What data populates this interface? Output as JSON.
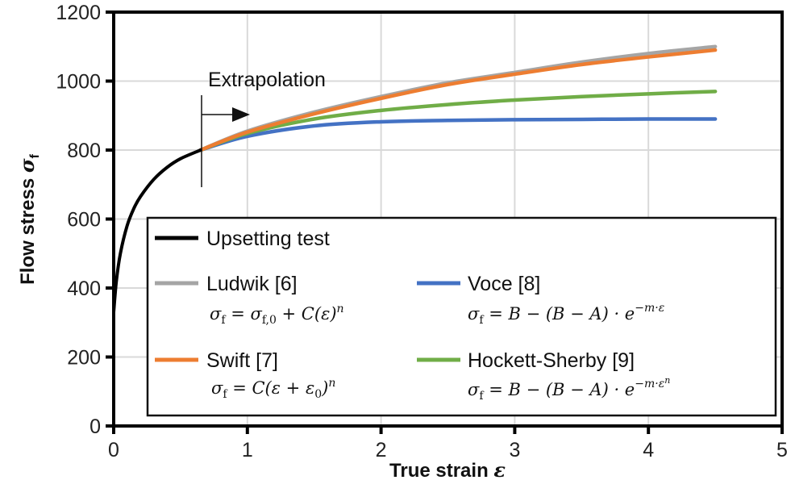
{
  "chart_data": {
    "type": "line",
    "title": "",
    "xlabel": "True strain ε",
    "ylabel": "Flow stress σf",
    "xlim": [
      0,
      5
    ],
    "ylim": [
      0,
      1200
    ],
    "xticks": [
      "0",
      "1",
      "2",
      "3",
      "4",
      "5"
    ],
    "yticks": [
      "0",
      "200",
      "400",
      "600",
      "800",
      "1000",
      "1200"
    ],
    "grid": true,
    "legend_position": "inside lower center",
    "annotations": [
      {
        "text": "Extrapolation",
        "x": 0.65,
        "arrow": "right",
        "marker_x": 0.65
      }
    ],
    "series": [
      {
        "name": "Upsetting test",
        "color": "#000000",
        "x": [
          0,
          0.02,
          0.05,
          0.1,
          0.15,
          0.2,
          0.3,
          0.4,
          0.5,
          0.65
        ],
        "y": [
          330,
          420,
          500,
          580,
          630,
          665,
          715,
          750,
          775,
          800
        ]
      },
      {
        "name": "Ludwik [6]",
        "equation": "σf = σf,0 + C(ε)^n",
        "color": "#a5a5a5",
        "x": [
          0.65,
          1,
          1.5,
          2,
          2.5,
          3,
          3.5,
          4,
          4.5
        ],
        "y": [
          800,
          855,
          910,
          955,
          995,
          1025,
          1055,
          1080,
          1100
        ]
      },
      {
        "name": "Swift [7]",
        "equation": "σf = C(ε + ε0)^n",
        "color": "#ed7d31",
        "x": [
          0.65,
          1,
          1.5,
          2,
          2.5,
          3,
          3.5,
          4,
          4.5
        ],
        "y": [
          800,
          852,
          905,
          950,
          990,
          1020,
          1048,
          1070,
          1090
        ]
      },
      {
        "name": "Voce [8]",
        "equation": "σf = B − (B − A) · e^(−m·ε)",
        "color": "#4472c4",
        "x": [
          0.65,
          1,
          1.5,
          2,
          2.5,
          3,
          3.5,
          4,
          4.5
        ],
        "y": [
          800,
          840,
          870,
          882,
          886,
          888,
          889,
          890,
          890
        ]
      },
      {
        "name": "Hockett-Sherby [9]",
        "equation": "σf = B − (B − A) · e^(−m·ε^n)",
        "color": "#70ad47",
        "x": [
          0.65,
          1,
          1.5,
          2,
          2.5,
          3,
          3.5,
          4,
          4.5
        ],
        "y": [
          800,
          848,
          890,
          915,
          932,
          945,
          955,
          963,
          970
        ]
      }
    ]
  },
  "axes": {
    "xlabel": "True strain ",
    "xlabel_sym": "ε",
    "ylabel": "Flow stress ",
    "ylabel_sym": "σ",
    "ylabel_sub": "f"
  },
  "annotation": {
    "text": "Extrapolation"
  },
  "legend": {
    "items": [
      {
        "label": "Upsetting test",
        "eq": ""
      },
      {
        "label": "Ludwik [6]",
        "eq": "σ_f = σ_f,0 + C(ε)^n"
      },
      {
        "label": "Voce [8]",
        "eq": "σ_f = B − (B − A) · e^−m·ε"
      },
      {
        "label": "Swift [7]",
        "eq": "σ_f = C(ε + ε_0)^n"
      },
      {
        "label": "Hockett-Sherby [9]",
        "eq": "σ_f = B − (B − A) · e^−m·ε^n"
      }
    ]
  }
}
